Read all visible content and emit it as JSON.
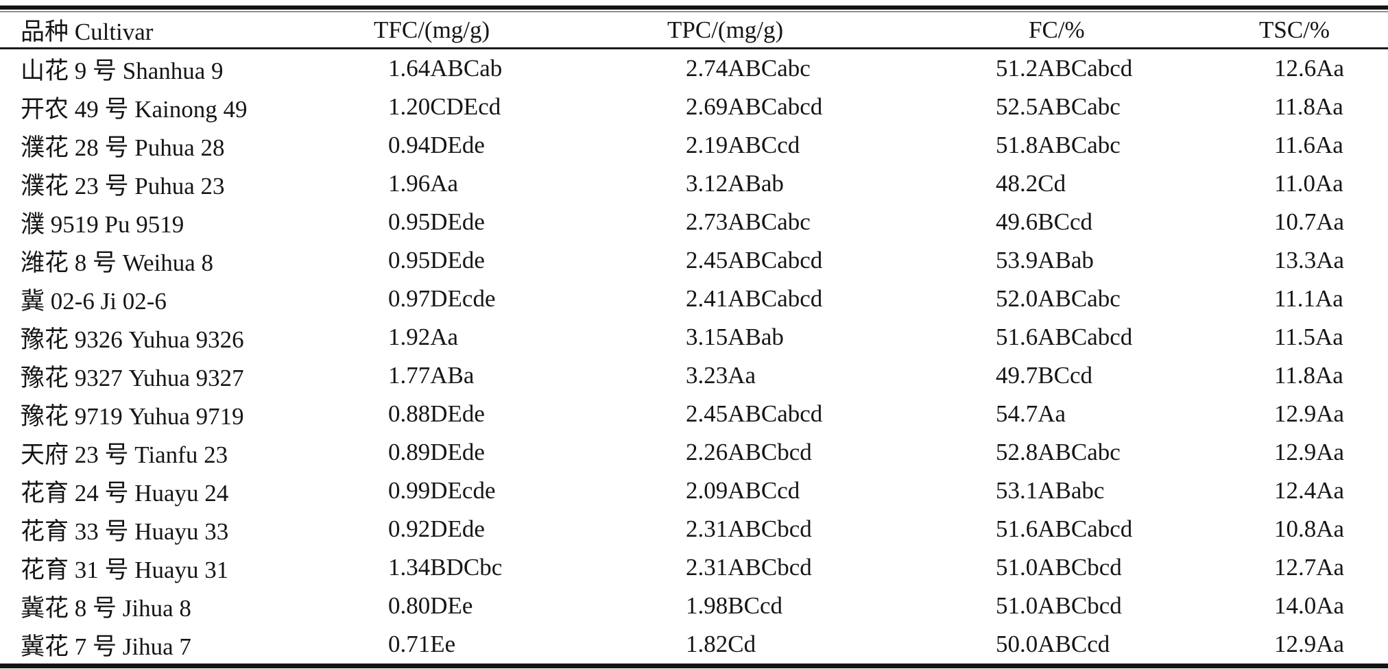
{
  "table": {
    "columns": [
      {
        "key": "cultivar",
        "label": "品种 Cultivar"
      },
      {
        "key": "tfc",
        "label": "TFC/(mg/g)"
      },
      {
        "key": "tpc",
        "label": "TPC/(mg/g)"
      },
      {
        "key": "fc",
        "label": "FC/%"
      },
      {
        "key": "tsc",
        "label": "TSC/%"
      }
    ],
    "rows": [
      {
        "cultivar": "山花 9 号 Shanhua 9",
        "tfc": "1.64ABCab",
        "tpc": "2.74ABCabc",
        "fc": "51.2ABCabcd",
        "tsc": "12.6Aa"
      },
      {
        "cultivar": "开农 49 号 Kainong 49",
        "tfc": "1.20CDEcd",
        "tpc": "2.69ABCabcd",
        "fc": "52.5ABCabc",
        "tsc": "11.8Aa"
      },
      {
        "cultivar": "濮花 28 号 Puhua 28",
        "tfc": "0.94DEde",
        "tpc": "2.19ABCcd",
        "fc": "51.8ABCabc",
        "tsc": "11.6Aa"
      },
      {
        "cultivar": "濮花 23 号 Puhua 23",
        "tfc": "1.96Aa",
        "tpc": "3.12ABab",
        "fc": "48.2Cd",
        "tsc": "11.0Aa"
      },
      {
        "cultivar": "濮 9519 Pu 9519",
        "tfc": "0.95DEde",
        "tpc": "2.73ABCabc",
        "fc": "49.6BCcd",
        "tsc": "10.7Aa"
      },
      {
        "cultivar": "潍花 8 号 Weihua 8",
        "tfc": "0.95DEde",
        "tpc": "2.45ABCabcd",
        "fc": "53.9ABab",
        "tsc": "13.3Aa"
      },
      {
        "cultivar": "冀 02-6 Ji 02-6",
        "tfc": "0.97DEcde",
        "tpc": "2.41ABCabcd",
        "fc": "52.0ABCabc",
        "tsc": "11.1Aa"
      },
      {
        "cultivar": "豫花 9326 Yuhua 9326",
        "tfc": "1.92Aa",
        "tpc": "3.15ABab",
        "fc": "51.6ABCabcd",
        "tsc": "11.5Aa"
      },
      {
        "cultivar": "豫花 9327 Yuhua 9327",
        "tfc": "1.77ABa",
        "tpc": "3.23Aa",
        "fc": "49.7BCcd",
        "tsc": "11.8Aa"
      },
      {
        "cultivar": "豫花 9719 Yuhua 9719",
        "tfc": "0.88DEde",
        "tpc": "2.45ABCabcd",
        "fc": "54.7Aa",
        "tsc": "12.9Aa"
      },
      {
        "cultivar": "天府 23 号 Tianfu 23",
        "tfc": "0.89DEde",
        "tpc": "2.26ABCbcd",
        "fc": "52.8ABCabc",
        "tsc": "12.9Aa"
      },
      {
        "cultivar": "花育 24 号 Huayu 24",
        "tfc": "0.99DEcde",
        "tpc": "2.09ABCcd",
        "fc": "53.1ABabc",
        "tsc": "12.4Aa"
      },
      {
        "cultivar": "花育 33 号 Huayu 33",
        "tfc": "0.92DEde",
        "tpc": "2.31ABCbcd",
        "fc": "51.6ABCabcd",
        "tsc": "10.8Aa"
      },
      {
        "cultivar": "花育 31 号 Huayu 31",
        "tfc": "1.34BDCbc",
        "tpc": "2.31ABCbcd",
        "fc": "51.0ABCbcd",
        "tsc": "12.7Aa"
      },
      {
        "cultivar": "冀花 8 号 Jihua 8",
        "tfc": "0.80DEe",
        "tpc": "1.98BCcd",
        "fc": "51.0ABCbcd",
        "tsc": "14.0Aa"
      },
      {
        "cultivar": "冀花 7 号 Jihua 7",
        "tfc": "0.71Ee",
        "tpc": "1.82Cd",
        "fc": "50.0ABCcd",
        "tsc": "12.9Aa"
      }
    ]
  }
}
